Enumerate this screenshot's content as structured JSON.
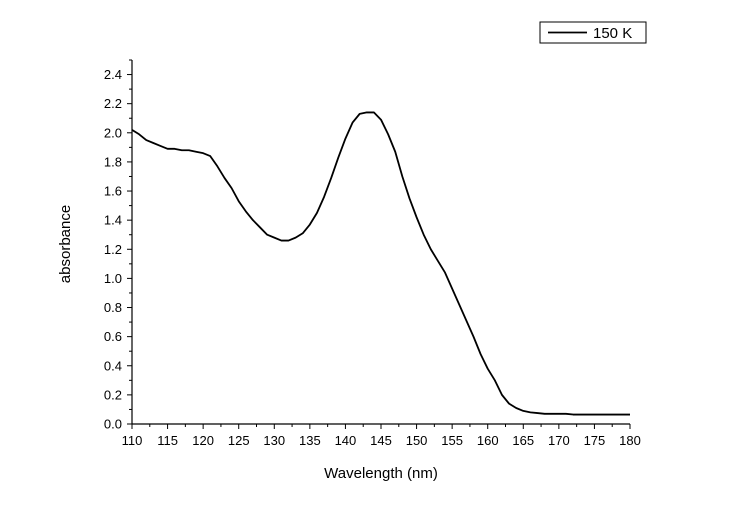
{
  "chart_data": {
    "type": "line",
    "xlabel": "Wavelength (nm)",
    "ylabel": "absorbance",
    "xlim": [
      110,
      180
    ],
    "ylim": [
      0.0,
      2.5
    ],
    "x_ticks": [
      "110",
      "115",
      "120",
      "125",
      "130",
      "135",
      "140",
      "145",
      "150",
      "155",
      "160",
      "165",
      "170",
      "175",
      "180"
    ],
    "y_ticks": [
      "0.0",
      "0.2",
      "0.4",
      "0.6",
      "0.8",
      "1.0",
      "1.2",
      "1.4",
      "1.6",
      "1.8",
      "2.0",
      "2.2",
      "2.4"
    ],
    "grid": false,
    "legend_position": "top-right",
    "series": [
      {
        "name": "150 K",
        "color": "#000000",
        "x": [
          110,
          111,
          112,
          113,
          114,
          115,
          116,
          117,
          118,
          119,
          120,
          121,
          122,
          123,
          124,
          125,
          126,
          127,
          128,
          129,
          130,
          131,
          132,
          133,
          134,
          135,
          136,
          137,
          138,
          139,
          140,
          141,
          142,
          143,
          144,
          145,
          146,
          147,
          148,
          149,
          150,
          151,
          152,
          153,
          154,
          155,
          156,
          157,
          158,
          159,
          160,
          161,
          162,
          163,
          164,
          165,
          166,
          167,
          168,
          169,
          170,
          171,
          172,
          173,
          174,
          175,
          176,
          177,
          178,
          179,
          180
        ],
        "y": [
          2.02,
          1.99,
          1.95,
          1.93,
          1.91,
          1.89,
          1.89,
          1.88,
          1.88,
          1.87,
          1.86,
          1.84,
          1.77,
          1.69,
          1.62,
          1.53,
          1.46,
          1.4,
          1.35,
          1.3,
          1.28,
          1.26,
          1.26,
          1.28,
          1.31,
          1.37,
          1.45,
          1.56,
          1.69,
          1.83,
          1.96,
          2.07,
          2.13,
          2.14,
          2.14,
          2.09,
          1.99,
          1.87,
          1.7,
          1.55,
          1.42,
          1.3,
          1.2,
          1.12,
          1.04,
          0.93,
          0.82,
          0.71,
          0.6,
          0.48,
          0.38,
          0.3,
          0.2,
          0.14,
          0.11,
          0.09,
          0.08,
          0.075,
          0.07,
          0.07,
          0.07,
          0.07,
          0.065,
          0.065,
          0.065,
          0.065,
          0.065,
          0.065,
          0.065,
          0.065,
          0.065
        ]
      }
    ]
  }
}
